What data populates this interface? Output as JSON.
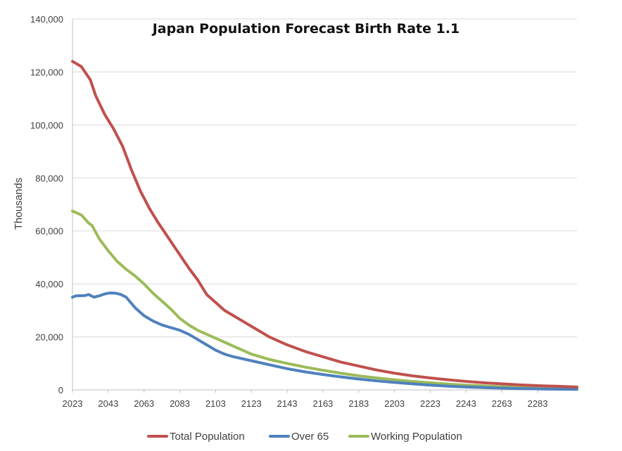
{
  "chart_data": {
    "type": "line",
    "title": "Japan Population Forecast Birth Rate 1.1",
    "xlabel": "",
    "ylabel": "Thousands",
    "xlim": [
      2023,
      2305
    ],
    "ylim": [
      0,
      140000
    ],
    "x_ticks": [
      "2023",
      "2043",
      "2063",
      "2083",
      "2103",
      "2123",
      "2143",
      "2163",
      "2183",
      "2203",
      "2223",
      "2243",
      "2263",
      "2283"
    ],
    "y_ticks": [
      "0",
      "20,000",
      "40,000",
      "60,000",
      "80,000",
      "100,000",
      "120,000",
      "140,000"
    ],
    "y_tick_values": [
      0,
      20000,
      40000,
      60000,
      80000,
      100000,
      120000,
      140000
    ],
    "legend_position": "bottom",
    "grid": true,
    "series": [
      {
        "name": "Total Population",
        "color": "#c0504d",
        "x": [
          2023,
          2028,
          2031,
          2033,
          2036,
          2041,
          2046,
          2051,
          2056,
          2061,
          2066,
          2071,
          2076,
          2083,
          2088,
          2093,
          2098,
          2103,
          2108,
          2113,
          2118,
          2123,
          2128,
          2133,
          2143,
          2153,
          2163,
          2173,
          2183,
          2193,
          2203,
          2213,
          2223,
          2233,
          2243,
          2253,
          2263,
          2273,
          2283,
          2293,
          2305
        ],
        "values": [
          124000,
          122000,
          119000,
          117000,
          111000,
          104000,
          98500,
          92000,
          83000,
          75000,
          68500,
          63000,
          58000,
          51000,
          46000,
          41500,
          36000,
          33000,
          30000,
          28000,
          26000,
          24000,
          22000,
          20000,
          17000,
          14500,
          12500,
          10500,
          9000,
          7500,
          6300,
          5300,
          4500,
          3800,
          3200,
          2700,
          2300,
          1900,
          1600,
          1400,
          1100
        ]
      },
      {
        "name": "Over 65",
        "color": "#4f81bd",
        "x": [
          2023,
          2025,
          2030,
          2032,
          2035,
          2038,
          2041,
          2044,
          2047,
          2050,
          2053,
          2058,
          2063,
          2068,
          2073,
          2078,
          2083,
          2088,
          2093,
          2098,
          2103,
          2108,
          2113,
          2123,
          2133,
          2143,
          2153,
          2163,
          2173,
          2183,
          2193,
          2203,
          2213,
          2223,
          2233,
          2243,
          2253,
          2263,
          2273,
          2283,
          2293,
          2305
        ],
        "values": [
          35000,
          35500,
          35600,
          36000,
          35000,
          35500,
          36200,
          36600,
          36500,
          36000,
          35000,
          31000,
          28000,
          26000,
          24500,
          23500,
          22500,
          21000,
          19000,
          17000,
          15000,
          13500,
          12500,
          11000,
          9500,
          8000,
          6800,
          5800,
          4900,
          4100,
          3400,
          2800,
          2300,
          1800,
          1400,
          1100,
          850,
          650,
          500,
          380,
          280,
          200
        ]
      },
      {
        "name": "Working Population",
        "color": "#9bbb59",
        "x": [
          2023,
          2028,
          2032,
          2034,
          2038,
          2043,
          2048,
          2053,
          2058,
          2063,
          2068,
          2073,
          2078,
          2083,
          2088,
          2093,
          2098,
          2103,
          2108,
          2113,
          2118,
          2123,
          2133,
          2143,
          2153,
          2163,
          2173,
          2183,
          2193,
          2203,
          2213,
          2223,
          2233,
          2243,
          2253,
          2263,
          2273,
          2283,
          2293,
          2305
        ],
        "values": [
          67500,
          66000,
          63000,
          62000,
          57000,
          52500,
          48500,
          45500,
          43000,
          40000,
          36500,
          33500,
          30500,
          27000,
          24500,
          22500,
          21000,
          19500,
          18000,
          16500,
          15000,
          13500,
          11500,
          10000,
          8600,
          7400,
          6300,
          5300,
          4500,
          3800,
          3200,
          2700,
          2200,
          1800,
          1500,
          1200,
          1000,
          800,
          650,
          500
        ]
      }
    ]
  }
}
